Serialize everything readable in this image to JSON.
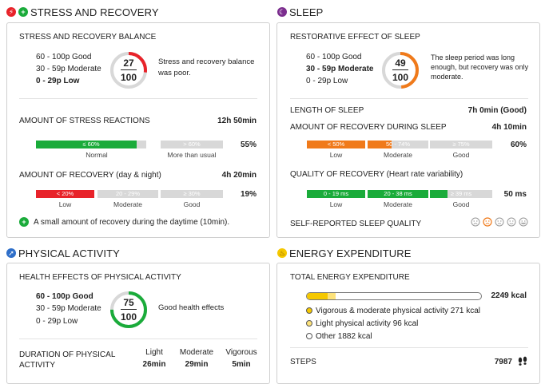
{
  "stress": {
    "title": "STRESS AND RECOVERY",
    "balance": {
      "label": "STRESS AND RECOVERY BALANCE",
      "scale": [
        "60 - 100p Good",
        "30 - 59p Moderate",
        "0 - 29p Low"
      ],
      "score": "27",
      "max": "100",
      "score_fraction": 0.27,
      "color": "#e8232a",
      "description": "Stress and recovery balance was poor."
    },
    "reactions": {
      "label": "AMOUNT OF STRESS REACTIONS",
      "duration": "12h 50min",
      "segments": [
        "≤ 60%",
        "> 60%"
      ],
      "segment_labels": [
        "Normal",
        "More than usual"
      ],
      "percent": "55%",
      "fill_fraction": 0.55
    },
    "recovery": {
      "label": "AMOUNT OF RECOVERY",
      "label_sub": "(day & night)",
      "duration": "4h 20min",
      "segments": [
        "< 20%",
        "20 - 29%",
        "≥ 30%"
      ],
      "segment_labels": [
        "Low",
        "Moderate",
        "Good"
      ],
      "percent": "19%",
      "fill_fraction": 0.19
    },
    "note": "A small amount of recovery during the daytime (10min)."
  },
  "sleep": {
    "title": "SLEEP",
    "restorative": {
      "label": "RESTORATIVE EFFECT OF SLEEP",
      "scale": [
        "60 - 100p Good",
        "30 - 59p Moderate",
        "0 - 29p Low"
      ],
      "score": "49",
      "max": "100",
      "score_fraction": 0.49,
      "color": "#f07a1a",
      "description": "The sleep period was long enough, but recovery was only moderate."
    },
    "length": {
      "label": "LENGTH OF SLEEP",
      "value": "7h 0min (Good)"
    },
    "recovery_during": {
      "label": "AMOUNT OF RECOVERY DURING SLEEP",
      "duration": "4h 10min",
      "segments": [
        "< 50%",
        "50 - 74%",
        "≥ 75%"
      ],
      "segment_labels": [
        "Low",
        "Moderate",
        "Good"
      ],
      "percent": "60%"
    },
    "quality": {
      "label": "QUALITY OF RECOVERY",
      "label_sub": "(Heart rate variability)",
      "segments": [
        "0 - 19 ms",
        "20 - 38 ms",
        "≥ 39 ms"
      ],
      "segment_labels": [
        "Low",
        "Moderate",
        "Good"
      ],
      "value": "50 ms"
    },
    "self_reported": {
      "label": "SELF-REPORTED SLEEP QUALITY"
    }
  },
  "activity": {
    "title": "PHYSICAL ACTIVITY",
    "health": {
      "label": "HEALTH EFFECTS OF PHYSICAL ACTIVITY",
      "scale": [
        "60 - 100p Good",
        "30 - 59p Moderate",
        "0 - 29p Low"
      ],
      "score": "75",
      "max": "100",
      "score_fraction": 0.75,
      "color": "#1aab3a",
      "description": "Good health effects"
    },
    "duration": {
      "label": "DURATION OF PHYSICAL ACTIVITY",
      "columns": [
        {
          "name": "Light",
          "value": "26min"
        },
        {
          "name": "Moderate",
          "value": "29min"
        },
        {
          "name": "Vigorous",
          "value": "5min"
        }
      ]
    }
  },
  "energy": {
    "title": "ENERGY EXPENDITURE",
    "total": {
      "label": "TOTAL ENERGY EXPENDITURE",
      "value": "2249 kcal"
    },
    "legend": [
      "Vigorous & moderate physical activity 271 kcal",
      "Light physical activity 96 kcal",
      "Other 1882 kcal"
    ],
    "steps": {
      "label": "STEPS",
      "value": "7987"
    }
  },
  "colors": {
    "green": "#1aab3a",
    "orange": "#f07a1a",
    "red": "#e8232a",
    "grey": "#d8d8d8",
    "yellow": "#f5c800"
  }
}
